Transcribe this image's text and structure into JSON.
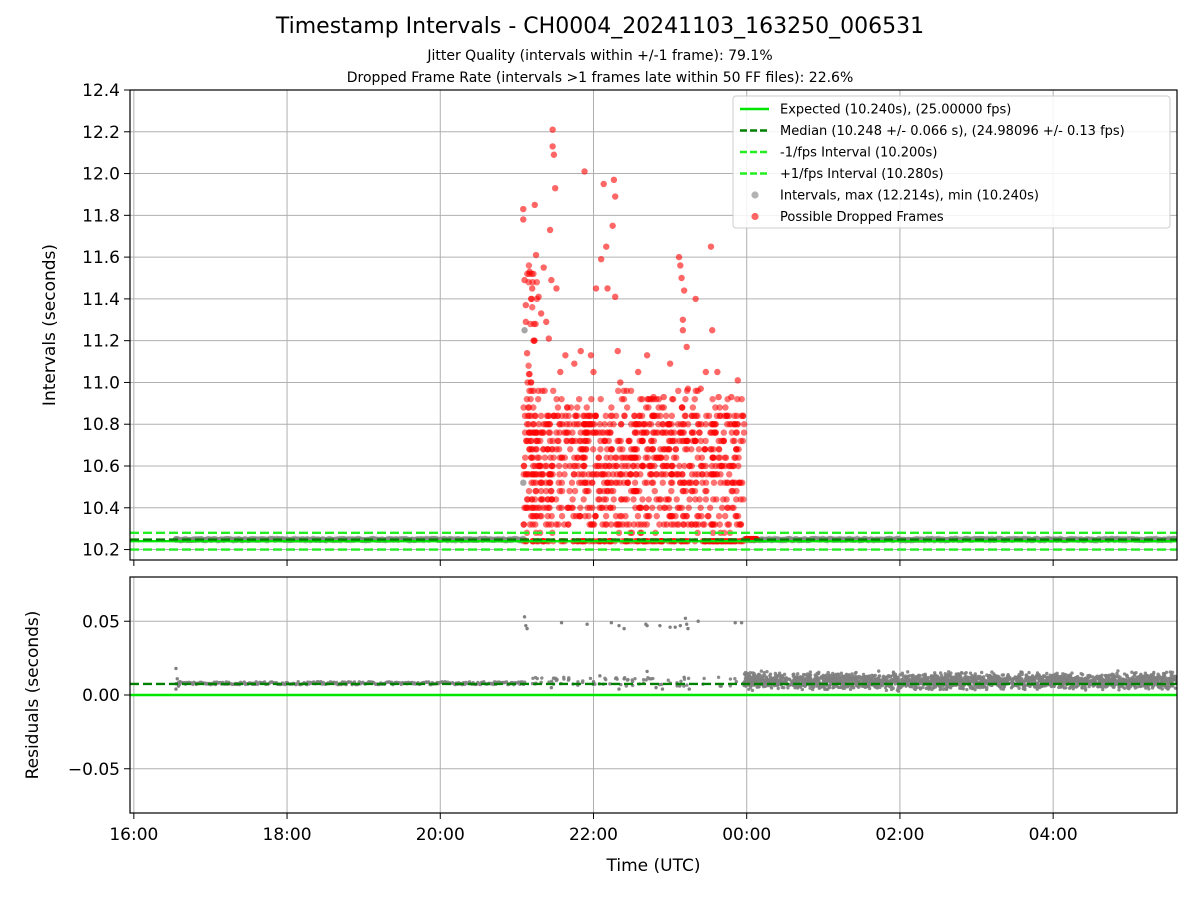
{
  "chart": {
    "title": "Timestamp Intervals - CH0004_20241103_163250_006531",
    "subtitle_jitter": "Jitter Quality (intervals within +/-1 frame): 79.1%",
    "subtitle_dropped": "Dropped Frame Rate (intervals >1 frames late within 50 FF files): 22.6%"
  },
  "colors": {
    "expected": "#00e600",
    "median": "#008000",
    "fps_interval": "#22ee22",
    "intervals": "#808080",
    "dropped": "#ff0000",
    "grid": "#b0b0b0",
    "legend_border": "#cccccc"
  },
  "chart_data": [
    {
      "type": "scatter",
      "panel": "top",
      "ylabel": "Intervals (seconds)",
      "ylim": [
        10.15,
        12.4
      ],
      "yticks": [
        "10.2",
        "10.4",
        "10.6",
        "10.8",
        "11.0",
        "11.2",
        "11.4",
        "11.6",
        "11.8",
        "12.0",
        "12.2",
        "12.4"
      ],
      "xlim": [
        "15:57",
        "05:37"
      ],
      "xticks": [
        "16:00",
        "18:00",
        "20:00",
        "22:00",
        "00:00",
        "02:00",
        "04:00"
      ],
      "grid": true,
      "legend_position": "top-right",
      "lines": [
        {
          "name": "Expected (10.240s), (25.00000 fps)",
          "y": 10.24,
          "style": "solid",
          "color": "#00e600"
        },
        {
          "name": "Median (10.248 +/- 0.066 s), (24.98096 +/- 0.13 fps)",
          "y": 10.248,
          "style": "dashed",
          "color": "#008000"
        },
        {
          "name": "-1/fps Interval (10.200s)",
          "y": 10.2,
          "style": "dashed",
          "color": "#22ee22"
        },
        {
          "name": "+1/fps Interval (10.280s)",
          "y": 10.28,
          "style": "dashed",
          "color": "#22ee22"
        }
      ],
      "series": [
        {
          "name": "Intervals, max (12.214s), min (10.240s)",
          "color": "#808080",
          "style": "scatter",
          "baseline_segments": [
            {
              "from": "16:33",
              "to": "21:07",
              "y": 10.248
            },
            {
              "from": "23:58",
              "to": "05:37",
              "y": 10.248
            }
          ],
          "points": [
            {
              "x": "16:33",
              "y": 10.25
            },
            {
              "x": "21:05",
              "y": 10.52
            },
            {
              "x": "21:06",
              "y": 11.25
            }
          ]
        },
        {
          "name": "Possible Dropped Frames",
          "color": "#ff0000",
          "style": "scatter",
          "cluster": {
            "from": "21:05",
            "to": "23:58",
            "core_ymin": 10.29,
            "core_ymax": 10.97
          },
          "points": [
            {
              "x": "21:05",
              "y": 11.83
            },
            {
              "x": "21:05",
              "y": 11.78
            },
            {
              "x": "21:06",
              "y": 11.49
            },
            {
              "x": "21:07",
              "y": 11.37
            },
            {
              "x": "21:07",
              "y": 11.29
            },
            {
              "x": "21:08",
              "y": 11.14
            },
            {
              "x": "21:10",
              "y": 11.53
            },
            {
              "x": "21:12",
              "y": 11.45
            },
            {
              "x": "21:14",
              "y": 11.85
            },
            {
              "x": "21:15",
              "y": 11.61
            },
            {
              "x": "21:17",
              "y": 11.41
            },
            {
              "x": "21:19",
              "y": 11.33
            },
            {
              "x": "21:21",
              "y": 11.55
            },
            {
              "x": "21:23",
              "y": 11.29
            },
            {
              "x": "21:25",
              "y": 11.21
            },
            {
              "x": "21:26",
              "y": 11.73
            },
            {
              "x": "21:27",
              "y": 11.49
            },
            {
              "x": "21:28",
              "y": 12.21
            },
            {
              "x": "21:28",
              "y": 12.13
            },
            {
              "x": "21:29",
              "y": 12.09
            },
            {
              "x": "21:30",
              "y": 11.93
            },
            {
              "x": "21:31",
              "y": 11.45
            },
            {
              "x": "21:34",
              "y": 11.05
            },
            {
              "x": "21:38",
              "y": 11.13
            },
            {
              "x": "21:45",
              "y": 11.09
            },
            {
              "x": "21:50",
              "y": 11.15
            },
            {
              "x": "21:53",
              "y": 12.01
            },
            {
              "x": "21:58",
              "y": 11.13
            },
            {
              "x": "22:00",
              "y": 11.05
            },
            {
              "x": "22:02",
              "y": 11.45
            },
            {
              "x": "22:06",
              "y": 11.59
            },
            {
              "x": "22:08",
              "y": 11.95
            },
            {
              "x": "22:10",
              "y": 11.65
            },
            {
              "x": "22:11",
              "y": 11.45
            },
            {
              "x": "22:15",
              "y": 11.75
            },
            {
              "x": "22:16",
              "y": 11.97
            },
            {
              "x": "22:17",
              "y": 11.89
            },
            {
              "x": "22:17",
              "y": 11.41
            },
            {
              "x": "22:19",
              "y": 11.15
            },
            {
              "x": "22:21",
              "y": 11.0
            },
            {
              "x": "22:35",
              "y": 11.05
            },
            {
              "x": "22:42",
              "y": 11.13
            },
            {
              "x": "22:47",
              "y": 10.93
            },
            {
              "x": "22:55",
              "y": 10.93
            },
            {
              "x": "23:00",
              "y": 11.09
            },
            {
              "x": "23:07",
              "y": 11.6
            },
            {
              "x": "23:08",
              "y": 11.56
            },
            {
              "x": "23:09",
              "y": 11.5
            },
            {
              "x": "23:10",
              "y": 11.3
            },
            {
              "x": "23:10",
              "y": 11.25
            },
            {
              "x": "23:11",
              "y": 11.44
            },
            {
              "x": "23:13",
              "y": 11.17
            },
            {
              "x": "23:14",
              "y": 10.97
            },
            {
              "x": "23:20",
              "y": 11.4
            },
            {
              "x": "23:24",
              "y": 10.97
            },
            {
              "x": "23:28",
              "y": 11.05
            },
            {
              "x": "23:32",
              "y": 11.65
            },
            {
              "x": "23:33",
              "y": 11.25
            },
            {
              "x": "23:37",
              "y": 11.05
            },
            {
              "x": "23:38",
              "y": 10.93
            },
            {
              "x": "23:48",
              "y": 10.93
            },
            {
              "x": "23:53",
              "y": 11.01
            }
          ]
        }
      ]
    },
    {
      "type": "scatter",
      "panel": "bottom",
      "xlabel": "Time (UTC)",
      "ylabel": "Residuals (seconds)",
      "ylim": [
        -0.08,
        0.08
      ],
      "yticks": [
        "−0.05",
        "0.00",
        "0.05"
      ],
      "xlim": [
        "15:57",
        "05:37"
      ],
      "xticks": [
        "16:00",
        "18:00",
        "20:00",
        "22:00",
        "00:00",
        "02:00",
        "04:00"
      ],
      "grid": true,
      "lines": [
        {
          "name": "Expected",
          "y": 0.0,
          "style": "solid",
          "color": "#00e600"
        },
        {
          "name": "Median",
          "y": 0.0075,
          "style": "dashed",
          "color": "#008000"
        }
      ],
      "series": [
        {
          "name": "Residuals",
          "color": "#808080",
          "style": "scatter",
          "segments": [
            {
              "from": "16:33",
              "to": "21:07",
              "ymin": 0.007,
              "ymax": 0.009
            },
            {
              "from": "21:07",
              "to": "23:58",
              "ymin": 0.006,
              "ymax": 0.012
            },
            {
              "from": "23:58",
              "to": "05:37",
              "ymin": 0.002,
              "ymax": 0.017
            }
          ],
          "points": [
            {
              "x": "16:33",
              "y": 0.018
            },
            {
              "x": "16:33",
              "y": 0.004
            },
            {
              "x": "16:34",
              "y": 0.011
            },
            {
              "x": "16:35",
              "y": 0.006
            },
            {
              "x": "16:36",
              "y": 0.009
            },
            {
              "x": "21:06",
              "y": 0.053
            },
            {
              "x": "21:07",
              "y": 0.047
            },
            {
              "x": "21:08",
              "y": 0.045
            },
            {
              "x": "21:35",
              "y": 0.049
            },
            {
              "x": "21:55",
              "y": 0.048
            },
            {
              "x": "22:14",
              "y": 0.049
            },
            {
              "x": "22:20",
              "y": 0.047
            },
            {
              "x": "22:24",
              "y": 0.045
            },
            {
              "x": "22:41",
              "y": 0.048
            },
            {
              "x": "22:42",
              "y": 0.047
            },
            {
              "x": "22:52",
              "y": 0.047
            },
            {
              "x": "23:00",
              "y": 0.046
            },
            {
              "x": "23:04",
              "y": 0.046
            },
            {
              "x": "23:08",
              "y": 0.047
            },
            {
              "x": "23:12",
              "y": 0.052
            },
            {
              "x": "23:13",
              "y": 0.048
            },
            {
              "x": "23:14",
              "y": 0.045
            },
            {
              "x": "23:22",
              "y": 0.05
            },
            {
              "x": "23:51",
              "y": 0.049
            },
            {
              "x": "23:56",
              "y": 0.049
            },
            {
              "x": "21:27",
              "y": 0.005
            },
            {
              "x": "22:00",
              "y": 0.009
            },
            {
              "x": "22:05",
              "y": 0.013
            },
            {
              "x": "22:20",
              "y": 0.004
            },
            {
              "x": "22:24",
              "y": 0.011
            },
            {
              "x": "22:42",
              "y": 0.016
            },
            {
              "x": "22:45",
              "y": 0.011
            },
            {
              "x": "22:49",
              "y": 0.005
            },
            {
              "x": "22:54",
              "y": 0.004
            },
            {
              "x": "23:11",
              "y": 0.012
            },
            {
              "x": "23:15",
              "y": 0.004
            },
            {
              "x": "23:40",
              "y": 0.006
            }
          ]
        }
      ]
    }
  ]
}
